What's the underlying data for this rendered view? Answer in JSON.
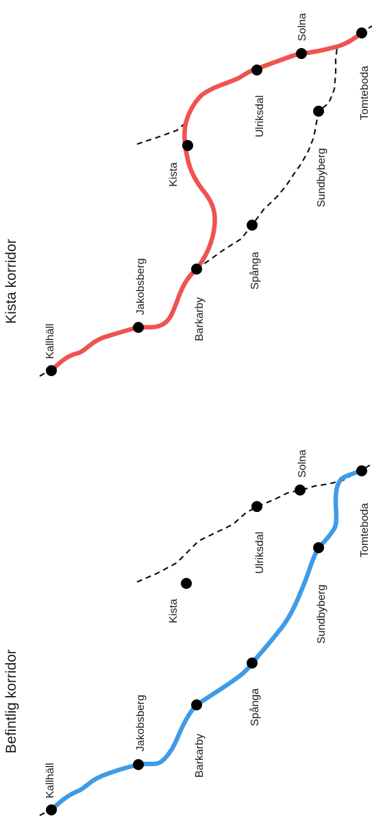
{
  "top_map": {
    "title": "Kista korridor",
    "route_color": "#ef5350",
    "stations": {
      "kallhall": "Kallhäll",
      "jakobsberg": "Jakobsberg",
      "barkarby": "Barkarby",
      "spanga": "Spånga",
      "kista": "Kista",
      "sundbyberg": "Sundbyberg",
      "ulriksdal": "Ulriksdal",
      "solna": "Solna",
      "tomteboda": "Tomteboda"
    }
  },
  "bottom_map": {
    "title": "Befintlig korridor",
    "route_color": "#3f9be8",
    "stations": {
      "kallhall": "Kallhäll",
      "jakobsberg": "Jakobsberg",
      "barkarby": "Barkarby",
      "spanga": "Spånga",
      "kista": "Kista",
      "sundbyberg": "Sundbyberg",
      "ulriksdal": "Ulriksdal",
      "solna": "Solna",
      "tomteboda": "Tomteboda"
    }
  }
}
